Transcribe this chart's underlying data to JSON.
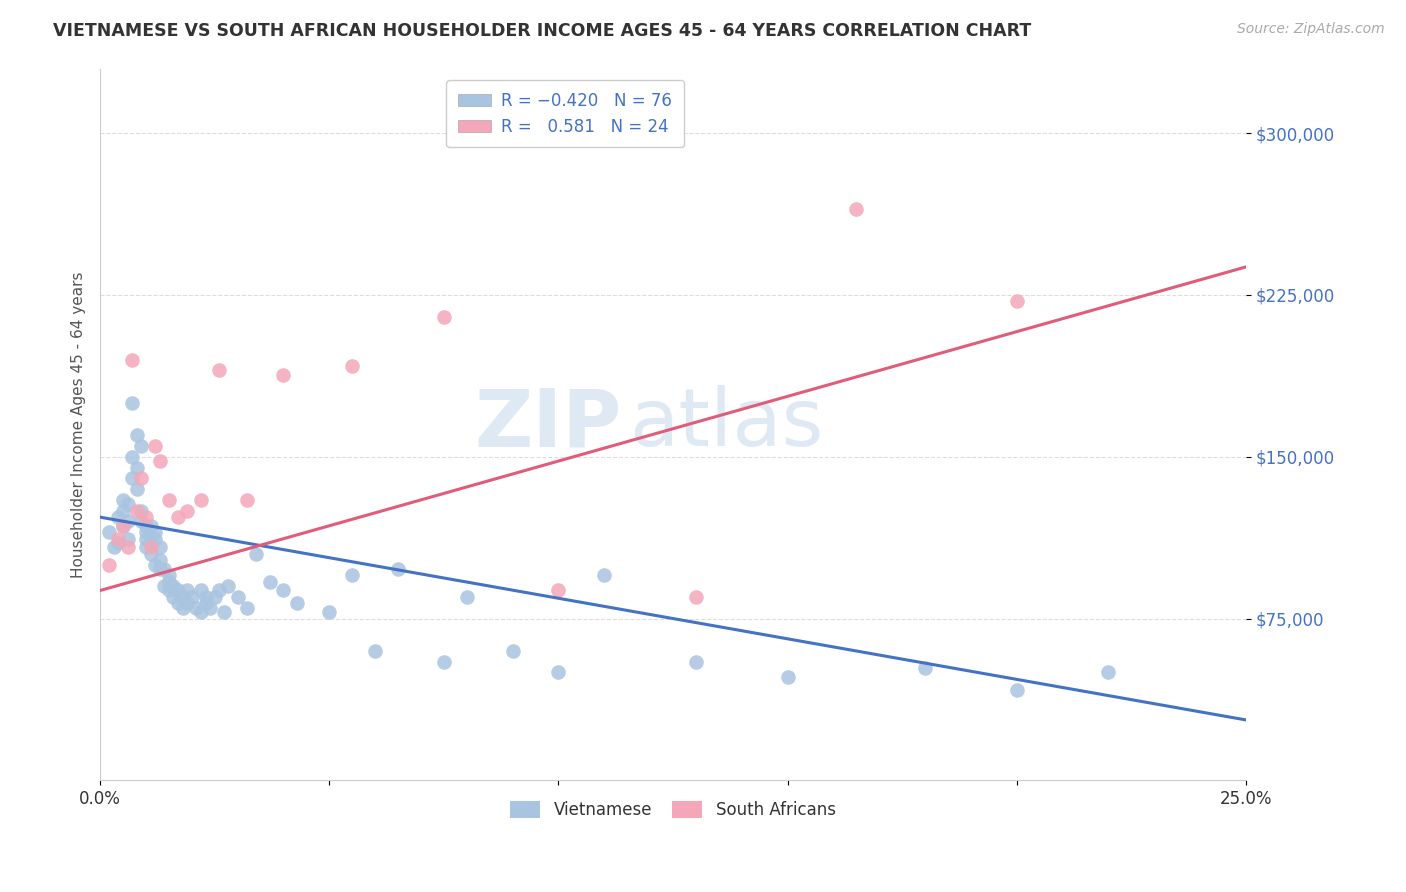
{
  "title": "VIETNAMESE VS SOUTH AFRICAN HOUSEHOLDER INCOME AGES 45 - 64 YEARS CORRELATION CHART",
  "source": "Source: ZipAtlas.com",
  "ylabel": "Householder Income Ages 45 - 64 years",
  "xlim": [
    0.0,
    0.25
  ],
  "ylim": [
    0,
    330000
  ],
  "yticks": [
    75000,
    150000,
    225000,
    300000
  ],
  "ytick_labels": [
    "$75,000",
    "$150,000",
    "$225,000",
    "$300,000"
  ],
  "xticks": [
    0.0,
    0.05,
    0.1,
    0.15,
    0.2,
    0.25
  ],
  "xtick_labels": [
    "0.0%",
    "",
    "",
    "",
    "",
    "25.0%"
  ],
  "watermark_zip": "ZIP",
  "watermark_atlas": "atlas",
  "viet_color": "#a8c4e0",
  "sa_color": "#f4a7b9",
  "viet_line_color": "#4472c4",
  "sa_line_color": "#e05c7a",
  "title_color": "#333333",
  "source_color": "#aaaaaa",
  "ylabel_color": "#555555",
  "ytick_color": "#4472c4",
  "grid_color": "#dddddd",
  "legend_text_color": "#4472c4",
  "viet_x": [
    0.002,
    0.003,
    0.004,
    0.004,
    0.005,
    0.005,
    0.005,
    0.006,
    0.006,
    0.006,
    0.007,
    0.007,
    0.007,
    0.008,
    0.008,
    0.008,
    0.009,
    0.009,
    0.009,
    0.01,
    0.01,
    0.01,
    0.01,
    0.011,
    0.011,
    0.011,
    0.012,
    0.012,
    0.012,
    0.013,
    0.013,
    0.013,
    0.014,
    0.014,
    0.015,
    0.015,
    0.015,
    0.016,
    0.016,
    0.017,
    0.017,
    0.018,
    0.018,
    0.019,
    0.019,
    0.02,
    0.021,
    0.022,
    0.022,
    0.023,
    0.023,
    0.024,
    0.025,
    0.026,
    0.027,
    0.028,
    0.03,
    0.032,
    0.034,
    0.037,
    0.04,
    0.043,
    0.05,
    0.055,
    0.06,
    0.065,
    0.075,
    0.08,
    0.09,
    0.1,
    0.11,
    0.13,
    0.15,
    0.18,
    0.2,
    0.22
  ],
  "viet_y": [
    115000,
    108000,
    122000,
    110000,
    118000,
    130000,
    125000,
    120000,
    112000,
    128000,
    175000,
    140000,
    150000,
    160000,
    145000,
    135000,
    155000,
    125000,
    120000,
    118000,
    112000,
    115000,
    108000,
    105000,
    118000,
    110000,
    112000,
    100000,
    115000,
    98000,
    108000,
    102000,
    98000,
    90000,
    92000,
    95000,
    88000,
    85000,
    90000,
    88000,
    82000,
    80000,
    85000,
    88000,
    82000,
    85000,
    80000,
    78000,
    88000,
    82000,
    85000,
    80000,
    85000,
    88000,
    78000,
    90000,
    85000,
    80000,
    105000,
    92000,
    88000,
    82000,
    78000,
    95000,
    60000,
    98000,
    55000,
    85000,
    60000,
    50000,
    95000,
    55000,
    48000,
    52000,
    42000,
    50000
  ],
  "sa_x": [
    0.002,
    0.004,
    0.005,
    0.006,
    0.007,
    0.008,
    0.009,
    0.01,
    0.011,
    0.012,
    0.013,
    0.015,
    0.017,
    0.019,
    0.022,
    0.026,
    0.032,
    0.04,
    0.055,
    0.075,
    0.1,
    0.13,
    0.165,
    0.2
  ],
  "sa_y": [
    100000,
    112000,
    118000,
    108000,
    195000,
    125000,
    140000,
    122000,
    108000,
    155000,
    148000,
    130000,
    122000,
    125000,
    130000,
    190000,
    130000,
    188000,
    192000,
    215000,
    88000,
    85000,
    265000,
    222000
  ],
  "blue_line_x0": 0.0,
  "blue_line_y0": 122000,
  "blue_line_x1": 0.25,
  "blue_line_y1": 28000,
  "pink_line_x0": 0.0,
  "pink_line_y0": 88000,
  "pink_line_x1": 0.25,
  "pink_line_y1": 238000
}
